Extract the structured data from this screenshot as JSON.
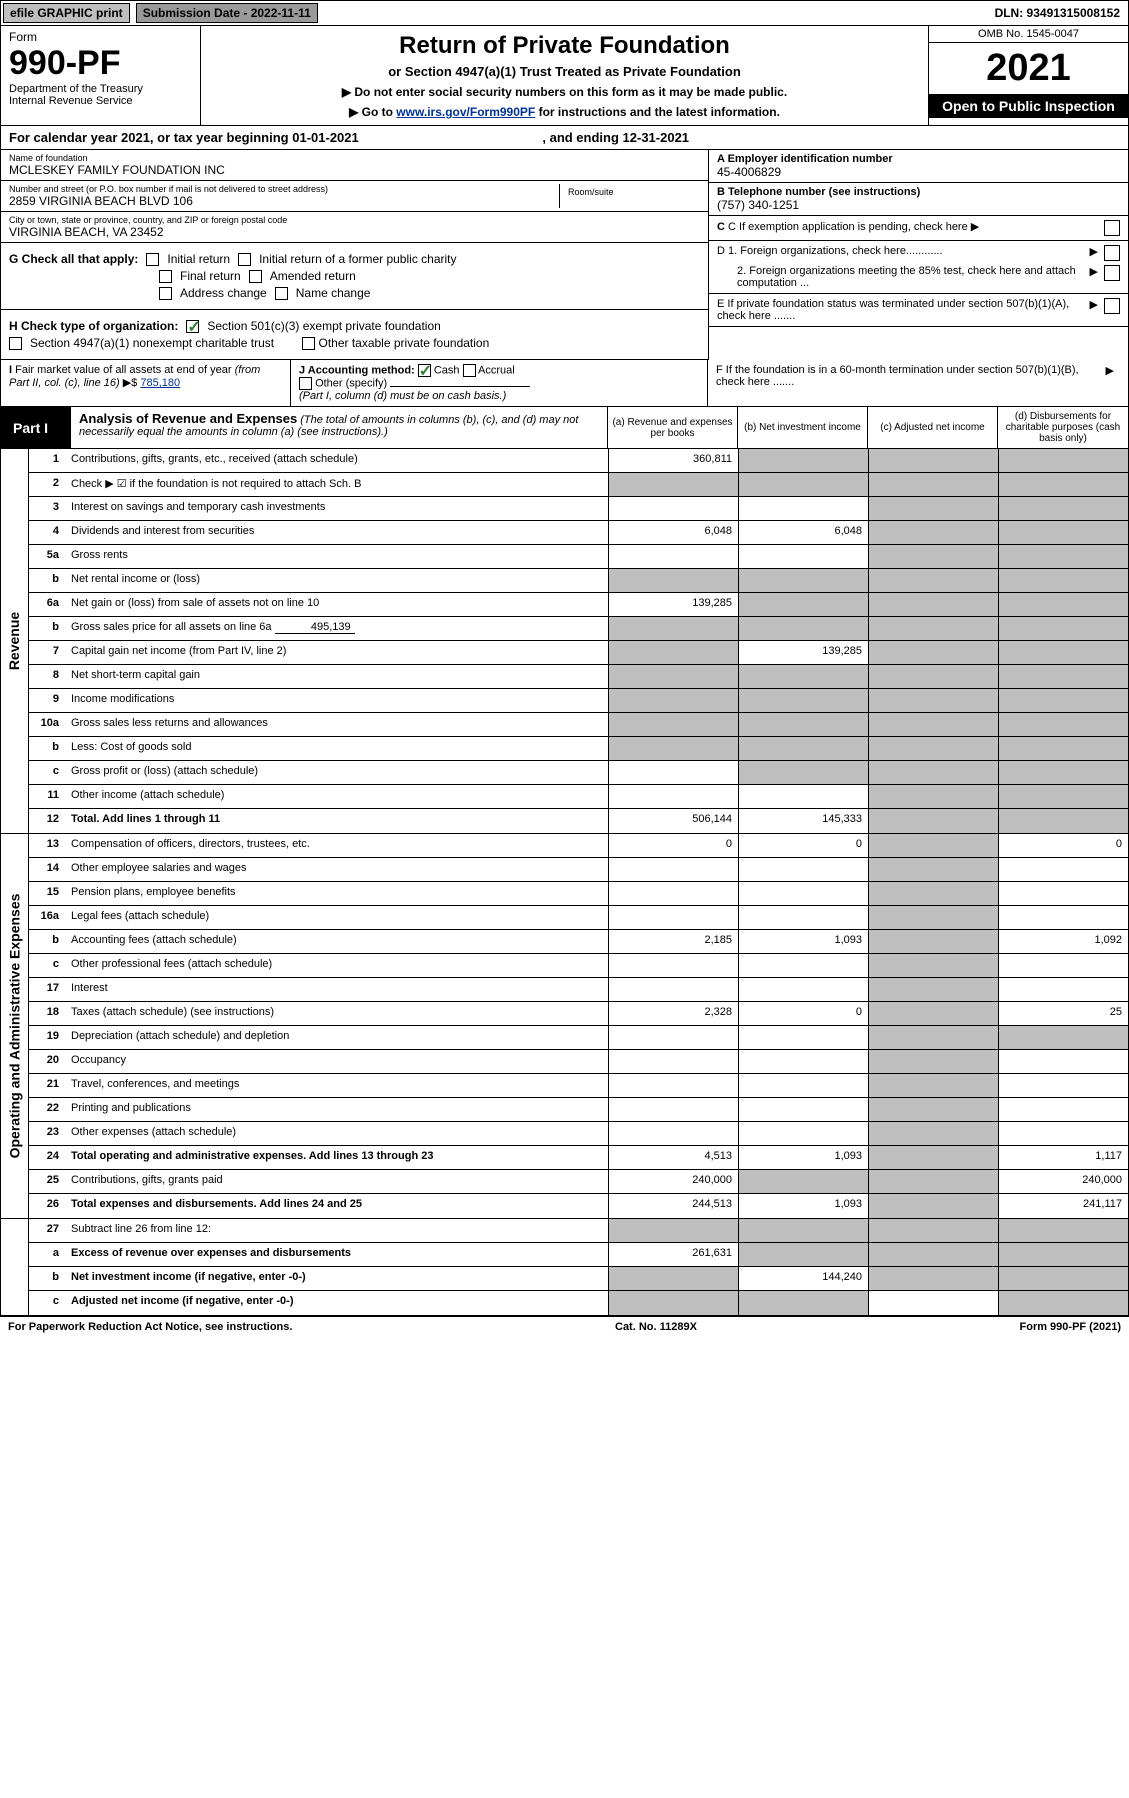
{
  "top": {
    "efile": "efile GRAPHIC print",
    "submission": "Submission Date - 2022-11-11",
    "dln": "DLN: 93491315008152"
  },
  "header": {
    "form_word": "Form",
    "form_no": "990-PF",
    "dept": "Department of the Treasury",
    "irs": "Internal Revenue Service",
    "title": "Return of Private Foundation",
    "subtitle": "or Section 4947(a)(1) Trust Treated as Private Foundation",
    "instr1": "▶ Do not enter social security numbers on this form as it may be made public.",
    "instr2_pre": "▶ Go to ",
    "instr2_link": "www.irs.gov/Form990PF",
    "instr2_post": " for instructions and the latest information.",
    "omb": "OMB No. 1545-0047",
    "year": "2021",
    "open": "Open to Public Inspection"
  },
  "cal_year": {
    "pre": "For calendar year 2021, or tax year beginning ",
    "begin": "01-01-2021",
    "mid": ", and ending ",
    "end": "12-31-2021"
  },
  "entity": {
    "name_lbl": "Name of foundation",
    "name": "MCLESKEY FAMILY FOUNDATION INC",
    "addr_lbl": "Number and street (or P.O. box number if mail is not delivered to street address)",
    "addr": "2859 VIRGINIA BEACH BLVD 106",
    "room_lbl": "Room/suite",
    "room": "",
    "city_lbl": "City or town, state or province, country, and ZIP or foreign postal code",
    "city": "VIRGINIA BEACH, VA  23452",
    "ein_lbl": "A Employer identification number",
    "ein": "45-4006829",
    "phone_lbl": "B Telephone number (see instructions)",
    "phone": "(757) 340-1251",
    "c_lbl": "C If exemption application is pending, check here",
    "d1": "D 1. Foreign organizations, check here............",
    "d2": "2. Foreign organizations meeting the 85% test, check here and attach computation ...",
    "e": "E If private foundation status was terminated under section 507(b)(1)(A), check here .......",
    "f": "F If the foundation is in a 60-month termination under section 507(b)(1)(B), check here ......."
  },
  "g": {
    "label": "G Check all that apply:",
    "opts": [
      "Initial return",
      "Initial return of a former public charity",
      "Final return",
      "Amended return",
      "Address change",
      "Name change"
    ]
  },
  "h": {
    "label": "H Check type of organization:",
    "opt1": "Section 501(c)(3) exempt private foundation",
    "opt2": "Section 4947(a)(1) nonexempt charitable trust",
    "opt3": "Other taxable private foundation"
  },
  "i": {
    "label": "I Fair market value of all assets at end of year (from Part II, col. (c), line 16) ▶$ ",
    "value": "785,180"
  },
  "j": {
    "label": "J Accounting method:",
    "cash": "Cash",
    "accrual": "Accrual",
    "other": "Other (specify)",
    "note": "(Part I, column (d) must be on cash basis.)"
  },
  "part1": {
    "label": "Part I",
    "title": "Analysis of Revenue and Expenses",
    "note": " (The total of amounts in columns (b), (c), and (d) may not necessarily equal the amounts in column (a) (see instructions).)",
    "col_a": "(a) Revenue and expenses per books",
    "col_b": "(b) Net investment income",
    "col_c": "(c) Adjusted net income",
    "col_d": "(d) Disbursements for charitable purposes (cash basis only)"
  },
  "side": {
    "revenue": "Revenue",
    "expenses": "Operating and Administrative Expenses"
  },
  "lines": {
    "l1": {
      "n": "1",
      "d": "Contributions, gifts, grants, etc., received (attach schedule)",
      "a": "360,811"
    },
    "l2": {
      "n": "2",
      "d": "Check ▶ ☑ if the foundation is not required to attach Sch. B"
    },
    "l3": {
      "n": "3",
      "d": "Interest on savings and temporary cash investments"
    },
    "l4": {
      "n": "4",
      "d": "Dividends and interest from securities",
      "a": "6,048",
      "b": "6,048"
    },
    "l5a": {
      "n": "5a",
      "d": "Gross rents"
    },
    "l5b": {
      "n": "b",
      "d": "Net rental income or (loss)"
    },
    "l6a": {
      "n": "6a",
      "d": "Net gain or (loss) from sale of assets not on line 10",
      "a": "139,285"
    },
    "l6b": {
      "n": "b",
      "d": "Gross sales price for all assets on line 6a",
      "box": "495,139"
    },
    "l7": {
      "n": "7",
      "d": "Capital gain net income (from Part IV, line 2)",
      "b": "139,285"
    },
    "l8": {
      "n": "8",
      "d": "Net short-term capital gain"
    },
    "l9": {
      "n": "9",
      "d": "Income modifications"
    },
    "l10a": {
      "n": "10a",
      "d": "Gross sales less returns and allowances"
    },
    "l10b": {
      "n": "b",
      "d": "Less: Cost of goods sold"
    },
    "l10c": {
      "n": "c",
      "d": "Gross profit or (loss) (attach schedule)"
    },
    "l11": {
      "n": "11",
      "d": "Other income (attach schedule)"
    },
    "l12": {
      "n": "12",
      "d": "Total. Add lines 1 through 11",
      "a": "506,144",
      "b": "145,333",
      "bold": true
    },
    "l13": {
      "n": "13",
      "d": "Compensation of officers, directors, trustees, etc.",
      "a": "0",
      "b": "0",
      "dd": "0"
    },
    "l14": {
      "n": "14",
      "d": "Other employee salaries and wages"
    },
    "l15": {
      "n": "15",
      "d": "Pension plans, employee benefits"
    },
    "l16a": {
      "n": "16a",
      "d": "Legal fees (attach schedule)"
    },
    "l16b": {
      "n": "b",
      "d": "Accounting fees (attach schedule)",
      "a": "2,185",
      "b": "1,093",
      "dd": "1,092"
    },
    "l16c": {
      "n": "c",
      "d": "Other professional fees (attach schedule)"
    },
    "l17": {
      "n": "17",
      "d": "Interest"
    },
    "l18": {
      "n": "18",
      "d": "Taxes (attach schedule) (see instructions)",
      "a": "2,328",
      "b": "0",
      "dd": "25"
    },
    "l19": {
      "n": "19",
      "d": "Depreciation (attach schedule) and depletion"
    },
    "l20": {
      "n": "20",
      "d": "Occupancy"
    },
    "l21": {
      "n": "21",
      "d": "Travel, conferences, and meetings"
    },
    "l22": {
      "n": "22",
      "d": "Printing and publications"
    },
    "l23": {
      "n": "23",
      "d": "Other expenses (attach schedule)"
    },
    "l24": {
      "n": "24",
      "d": "Total operating and administrative expenses. Add lines 13 through 23",
      "a": "4,513",
      "b": "1,093",
      "dd": "1,117",
      "bold": true
    },
    "l25": {
      "n": "25",
      "d": "Contributions, gifts, grants paid",
      "a": "240,000",
      "dd": "240,000"
    },
    "l26": {
      "n": "26",
      "d": "Total expenses and disbursements. Add lines 24 and 25",
      "a": "244,513",
      "b": "1,093",
      "dd": "241,117",
      "bold": true
    },
    "l27": {
      "n": "27",
      "d": "Subtract line 26 from line 12:"
    },
    "l27a": {
      "n": "a",
      "d": "Excess of revenue over expenses and disbursements",
      "a": "261,631",
      "bold": true
    },
    "l27b": {
      "n": "b",
      "d": "Net investment income (if negative, enter -0-)",
      "b": "144,240",
      "bold": true
    },
    "l27c": {
      "n": "c",
      "d": "Adjusted net income (if negative, enter -0-)",
      "bold": true
    }
  },
  "footer": {
    "left": "For Paperwork Reduction Act Notice, see instructions.",
    "center": "Cat. No. 11289X",
    "right": "Form 990-PF (2021)"
  }
}
